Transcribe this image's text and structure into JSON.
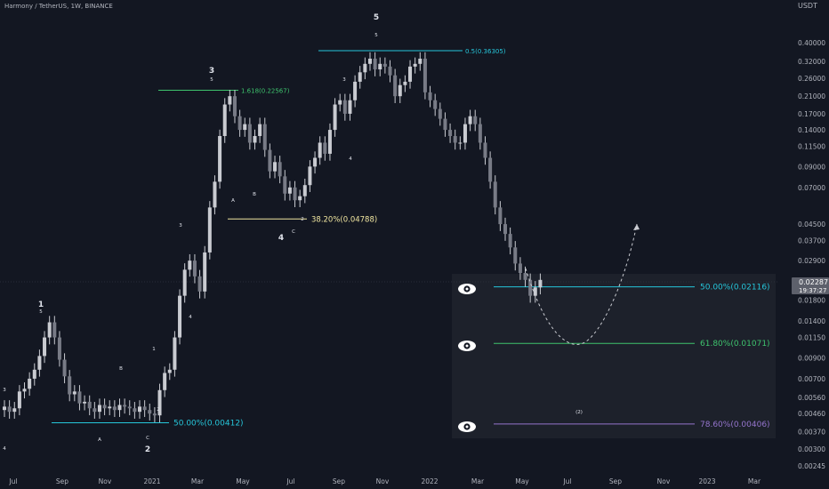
{
  "header": {
    "title": "Harmony / TetherUS, 1W, BINANCE"
  },
  "price_box": {
    "price": "0.02287",
    "countdown": "19:37:27"
  },
  "colors": {
    "background": "#131722",
    "candle": "#c9cbd1",
    "teal": "#26c6da",
    "green": "#3ec46d",
    "yellow": "#f0e6a0",
    "purple": "#9575cd",
    "eye_panel": "#1d212b"
  },
  "chart_data": {
    "type": "candlestick",
    "yscale": "log",
    "ylabel": "USDT",
    "ylim": [
      0.0023,
      0.6
    ],
    "y_ticks": [
      0.4,
      0.32,
      0.26,
      0.21,
      0.17,
      0.14,
      0.115,
      0.09,
      0.07,
      0.045,
      0.037,
      0.029,
      0.018,
      0.014,
      0.0115,
      0.009,
      0.007,
      0.0056,
      0.0046,
      0.0037,
      0.003,
      0.00245
    ],
    "y_tick_labels": [
      "0.40000",
      "0.32000",
      "0.26000",
      "0.21000",
      "0.17000",
      "0.14000",
      "0.11500",
      "0.09000",
      "0.07000",
      "0.04500",
      "0.03700",
      "0.02900",
      "0.01800",
      "0.01400",
      "0.01150",
      "0.00900",
      "0.00700",
      "0.00560",
      "0.00460",
      "0.00370",
      "0.00300",
      "0.00245"
    ],
    "x_labels": [
      "Jul",
      "Sep",
      "Nov",
      "2021",
      "Mar",
      "May",
      "Jul",
      "Sep",
      "Nov",
      "2022",
      "Mar",
      "May",
      "Jul",
      "Sep",
      "Nov",
      "2023",
      "Mar"
    ],
    "x_start": "2020-06-22",
    "candles_close": [
      0.005,
      0.0047,
      0.0049,
      0.006,
      0.0062,
      0.007,
      0.0078,
      0.0092,
      0.0115,
      0.0138,
      0.0115,
      0.0088,
      0.0072,
      0.0058,
      0.006,
      0.0052,
      0.0053,
      0.0049,
      0.0047,
      0.0051,
      0.0049,
      0.005,
      0.0048,
      0.0051,
      0.005,
      0.0049,
      0.0047,
      0.005,
      0.0048,
      0.0046,
      0.0045,
      0.0061,
      0.0075,
      0.0078,
      0.0115,
      0.019,
      0.026,
      0.029,
      0.024,
      0.02,
      0.032,
      0.055,
      0.075,
      0.13,
      0.19,
      0.21,
      0.165,
      0.14,
      0.15,
      0.12,
      0.13,
      0.15,
      0.11,
      0.085,
      0.095,
      0.08,
      0.065,
      0.07,
      0.06,
      0.063,
      0.072,
      0.09,
      0.1,
      0.12,
      0.105,
      0.14,
      0.19,
      0.2,
      0.17,
      0.2,
      0.25,
      0.28,
      0.31,
      0.33,
      0.29,
      0.31,
      0.3,
      0.27,
      0.21,
      0.24,
      0.25,
      0.3,
      0.31,
      0.33,
      0.22,
      0.2,
      0.18,
      0.16,
      0.14,
      0.13,
      0.12,
      0.12,
      0.15,
      0.165,
      0.15,
      0.12,
      0.1,
      0.075,
      0.055,
      0.045,
      0.04,
      0.034,
      0.028,
      0.025,
      0.023,
      0.019,
      0.021,
      0.023
    ],
    "fib_levels": [
      {
        "label": "0.5(0.36305)",
        "value": 0.36305,
        "color": "#26c6da"
      },
      {
        "label": "1.618(0.22567)",
        "value": 0.22567,
        "color": "#3ec46d"
      },
      {
        "label": "38.20%(0.04788)",
        "value": 0.04788,
        "color": "#f0e6a0"
      },
      {
        "label": "50.00%(0.00412)",
        "value": 0.00412,
        "color": "#26c6da"
      },
      {
        "label": "50.00%(0.02116)",
        "value": 0.02116,
        "color": "#26c6da"
      },
      {
        "label": "61.80%(0.01071)",
        "value": 0.01071,
        "color": "#3ec46d"
      },
      {
        "label": "78.60%(0.00406)",
        "value": 0.00406,
        "color": "#9575cd"
      }
    ],
    "wave_labels": [
      {
        "text": "1",
        "big": true
      },
      {
        "text": "5"
      },
      {
        "text": "2",
        "big": true
      },
      {
        "text": "A"
      },
      {
        "text": "B"
      },
      {
        "text": "C"
      },
      {
        "text": "3",
        "big": true
      },
      {
        "text": "5"
      },
      {
        "text": "4",
        "big": true
      },
      {
        "text": "5",
        "big": true
      },
      {
        "text": "5"
      },
      {
        "text": "B"
      },
      {
        "text": "C"
      },
      {
        "text": "2"
      },
      {
        "text": "(2)"
      },
      {
        "text": "1"
      },
      {
        "text": "3"
      },
      {
        "text": "4"
      },
      {
        "text": "A"
      },
      {
        "text": "3"
      },
      {
        "text": "4"
      },
      {
        "text": "3"
      },
      {
        "text": "4"
      },
      {
        "text": "2"
      }
    ],
    "projection": "dashed parabola down to 0.01071 then up",
    "grid": false,
    "legend": "none"
  }
}
